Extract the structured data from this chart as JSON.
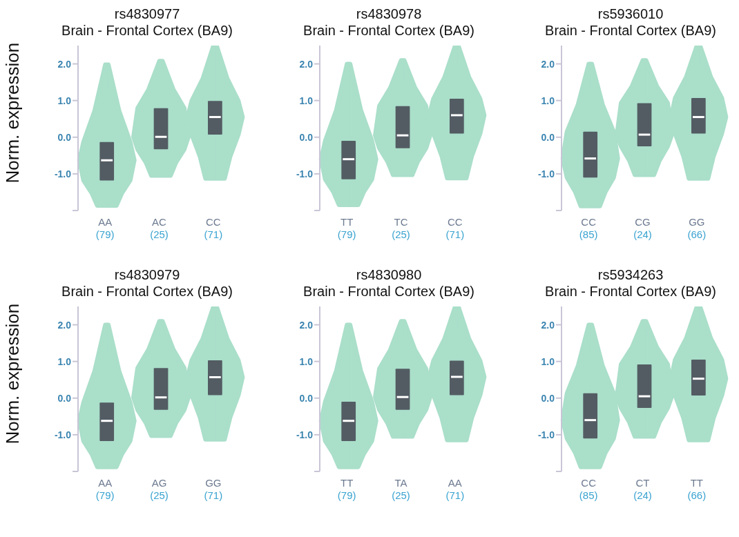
{
  "chart_data": [
    {
      "type": "box",
      "title": "rs4830977",
      "subtitle": "Brain - Frontal Cortex (BA9)",
      "ylabel": "Norm. expression",
      "categories": [
        "AA\n(79)",
        "AC\n(25)",
        "CC\n(71)"
      ],
      "ylim": [
        -2,
        2.5
      ],
      "yticks": [
        {
          "value": -2,
          "label": null
        },
        {
          "value": -1,
          "label": "-1.0"
        },
        {
          "value": 0,
          "label": "0.0"
        },
        {
          "value": 1,
          "label": "1.0"
        },
        {
          "value": 2,
          "label": "2.0"
        }
      ],
      "grid": false,
      "legend": false,
      "series": [
        {
          "color": "#535c63",
          "boxes": [
            {
              "low": -1.87,
              "q1": -1.18,
              "median": -0.63,
              "q3": -0.13,
              "high": 1.98
            },
            {
              "low": -1.05,
              "q1": -0.33,
              "median": 0.01,
              "q3": 0.79,
              "high": 2.08
            },
            {
              "low": -1.13,
              "q1": 0.07,
              "median": 0.55,
              "q3": 0.99,
              "high": 2.5
            }
          ]
        }
      ]
    },
    {
      "type": "box",
      "title": "rs4830978",
      "subtitle": "Brain - Frontal Cortex (BA9)",
      "categories": [
        "TT\n(79)",
        "TC\n(25)",
        "CC\n(71)"
      ],
      "ylim": [
        -2,
        2.5
      ],
      "yticks": [
        {
          "value": -2,
          "label": null
        },
        {
          "value": -1,
          "label": "-1.0"
        },
        {
          "value": 0,
          "label": "0.0"
        },
        {
          "value": 1,
          "label": "1.0"
        },
        {
          "value": 2,
          "label": "2.0"
        }
      ],
      "grid": false,
      "legend": false,
      "series": [
        {
          "color": "#535c63",
          "boxes": [
            {
              "low": -1.85,
              "q1": -1.15,
              "median": -0.6,
              "q3": -0.1,
              "high": 2.0
            },
            {
              "low": -1.03,
              "q1": -0.3,
              "median": 0.05,
              "q3": 0.85,
              "high": 2.1
            },
            {
              "low": -1.12,
              "q1": 0.1,
              "median": 0.6,
              "q3": 1.05,
              "high": 2.5
            }
          ]
        }
      ]
    },
    {
      "type": "box",
      "title": "rs5936010",
      "subtitle": "Brain - Frontal Cortex (BA9)",
      "categories": [
        "CC\n(85)",
        "CG\n(24)",
        "GG\n(66)"
      ],
      "ylim": [
        -2,
        2.5
      ],
      "yticks": [
        {
          "value": -2,
          "label": null
        },
        {
          "value": -1,
          "label": "-1.0"
        },
        {
          "value": 0,
          "label": "0.0"
        },
        {
          "value": 1,
          "label": "1.0"
        },
        {
          "value": 2,
          "label": "2.0"
        }
      ],
      "grid": false,
      "legend": false,
      "series": [
        {
          "color": "#535c63",
          "boxes": [
            {
              "low": -1.88,
              "q1": -1.1,
              "median": -0.58,
              "q3": 0.15,
              "high": 2.0
            },
            {
              "low": -1.03,
              "q1": -0.25,
              "median": 0.07,
              "q3": 0.93,
              "high": 2.1
            },
            {
              "low": -1.13,
              "q1": 0.1,
              "median": 0.55,
              "q3": 1.07,
              "high": 2.5
            }
          ]
        }
      ]
    },
    {
      "type": "box",
      "title": "rs4830979",
      "subtitle": "Brain - Frontal Cortex (BA9)",
      "ylabel": "Norm. expression",
      "categories": [
        "AA\n(79)",
        "AG\n(25)",
        "GG\n(71)"
      ],
      "ylim": [
        -2,
        2.5
      ],
      "yticks": [
        {
          "value": -2,
          "label": null
        },
        {
          "value": -1,
          "label": "-1.0"
        },
        {
          "value": 0,
          "label": "0.0"
        },
        {
          "value": 1,
          "label": "1.0"
        },
        {
          "value": 2,
          "label": "2.0"
        }
      ],
      "grid": false,
      "legend": false,
      "series": [
        {
          "color": "#535c63",
          "boxes": [
            {
              "low": -1.88,
              "q1": -1.17,
              "median": -0.62,
              "q3": -0.12,
              "high": 2.0
            },
            {
              "low": -1.03,
              "q1": -0.32,
              "median": 0.02,
              "q3": 0.82,
              "high": 2.1
            },
            {
              "low": -1.13,
              "q1": 0.08,
              "median": 0.57,
              "q3": 1.03,
              "high": 2.5
            }
          ]
        }
      ]
    },
    {
      "type": "box",
      "title": "rs4830980",
      "subtitle": "Brain - Frontal Cortex (BA9)",
      "categories": [
        "TT\n(79)",
        "TA\n(25)",
        "AA\n(71)"
      ],
      "ylim": [
        -2,
        2.5
      ],
      "yticks": [
        {
          "value": -2,
          "label": null
        },
        {
          "value": -1,
          "label": "-1.0"
        },
        {
          "value": 0,
          "label": "0.0"
        },
        {
          "value": 1,
          "label": "1.0"
        },
        {
          "value": 2,
          "label": "2.0"
        }
      ],
      "grid": false,
      "legend": false,
      "series": [
        {
          "color": "#535c63",
          "boxes": [
            {
              "low": -1.88,
              "q1": -1.17,
              "median": -0.62,
              "q3": -0.1,
              "high": 2.0
            },
            {
              "low": -1.05,
              "q1": -0.32,
              "median": 0.03,
              "q3": 0.8,
              "high": 2.1
            },
            {
              "low": -1.15,
              "q1": 0.08,
              "median": 0.58,
              "q3": 1.02,
              "high": 2.5
            }
          ]
        }
      ]
    },
    {
      "type": "box",
      "title": "rs5934263",
      "subtitle": "Brain - Frontal Cortex (BA9)",
      "categories": [
        "CC\n(85)",
        "CT\n(24)",
        "TT\n(66)"
      ],
      "ylim": [
        -2,
        2.5
      ],
      "yticks": [
        {
          "value": -2,
          "label": null
        },
        {
          "value": -1,
          "label": "-1.0"
        },
        {
          "value": 0,
          "label": "0.0"
        },
        {
          "value": 1,
          "label": "1.0"
        },
        {
          "value": 2,
          "label": "2.0"
        }
      ],
      "grid": false,
      "legend": false,
      "series": [
        {
          "color": "#535c63",
          "boxes": [
            {
              "low": -1.88,
              "q1": -1.1,
              "median": -0.6,
              "q3": 0.13,
              "high": 2.0
            },
            {
              "low": -1.05,
              "q1": -0.27,
              "median": 0.05,
              "q3": 0.92,
              "high": 2.1
            },
            {
              "low": -1.15,
              "q1": 0.07,
              "median": 0.53,
              "q3": 1.05,
              "high": 2.5
            }
          ]
        }
      ]
    }
  ]
}
